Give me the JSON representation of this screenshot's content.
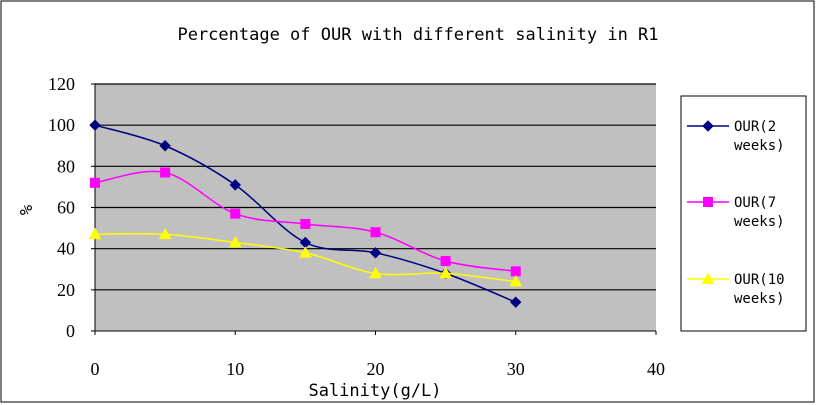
{
  "chart_data": {
    "type": "line",
    "title": "Percentage of OUR with different salinity in R1",
    "xlabel": "Salinity(g/L)",
    "ylabel": "%",
    "xlim": [
      0,
      40
    ],
    "ylim": [
      0,
      120
    ],
    "x_ticks": [
      0,
      10,
      20,
      30,
      40
    ],
    "y_ticks": [
      0,
      20,
      40,
      60,
      80,
      100,
      120
    ],
    "grid": "horizontal",
    "plot_background": "#c0c0c0",
    "legend_position": "right",
    "x": [
      0,
      5,
      10,
      15,
      20,
      25,
      30
    ],
    "series": [
      {
        "name_line1": "OUR(2",
        "name_line2": "weeks)",
        "color": "#000080",
        "marker": "diamond",
        "values": [
          100,
          90,
          71,
          43,
          38,
          28,
          14
        ]
      },
      {
        "name_line1": "OUR(7",
        "name_line2": "weeks)",
        "color": "#ff00ff",
        "marker": "square",
        "values": [
          72,
          77,
          57,
          52,
          48,
          34,
          29
        ]
      },
      {
        "name_line1": "OUR(10",
        "name_line2": "weeks)",
        "color": "#ffff00",
        "marker": "triangle",
        "values": [
          47,
          47,
          43,
          38,
          28,
          28,
          24
        ]
      }
    ]
  }
}
